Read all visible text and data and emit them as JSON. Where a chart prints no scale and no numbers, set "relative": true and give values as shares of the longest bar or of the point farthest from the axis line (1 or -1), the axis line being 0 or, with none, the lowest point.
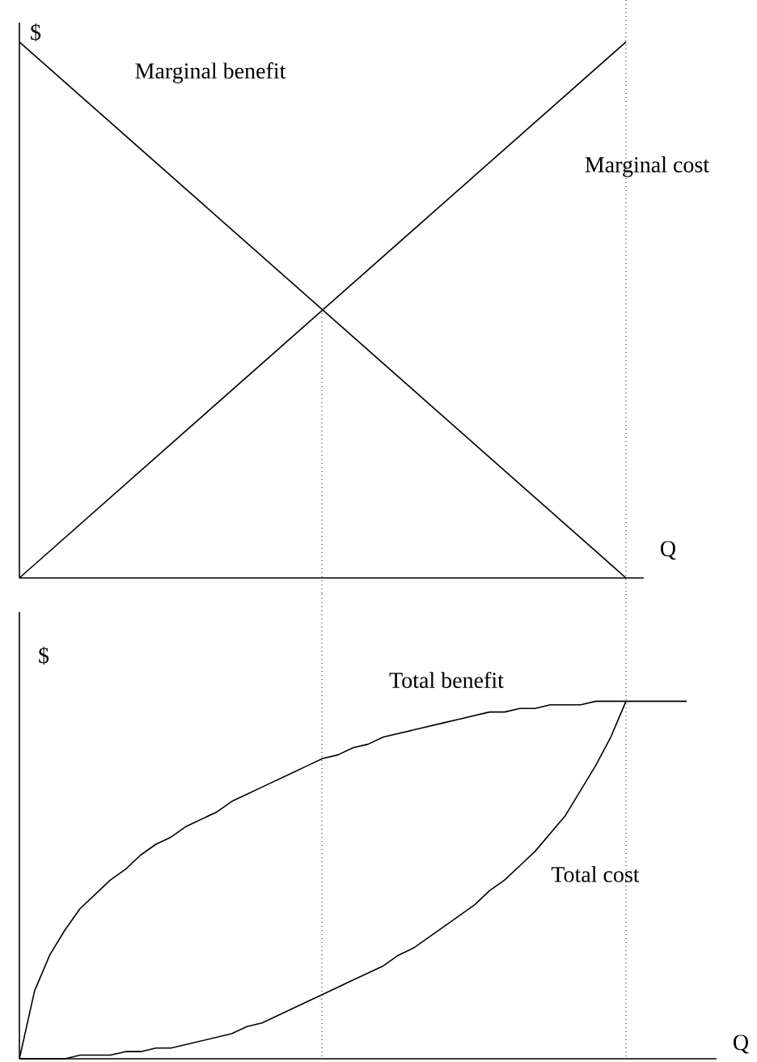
{
  "chart_data": [
    {
      "type": "line",
      "relative": true,
      "xlabel": "Q",
      "ylabel": "$",
      "categories": [
        null,
        null,
        null
      ],
      "series": [
        {
          "name": "Marginal benefit",
          "color": "#000000",
          "values": [
            1,
            0.5,
            0
          ]
        },
        {
          "name": "Marginal cost",
          "color": "#000000",
          "values": [
            0,
            0.5,
            1
          ]
        }
      ]
    },
    {
      "type": "line",
      "relative": true,
      "xlabel": "Q",
      "ylabel": "$",
      "categories": [
        null,
        null,
        null,
        null,
        null,
        null,
        null,
        null,
        null,
        null,
        null,
        null,
        null,
        null,
        null,
        null,
        null,
        null,
        null,
        null,
        null,
        null,
        null,
        null,
        null,
        null,
        null,
        null,
        null,
        null,
        null,
        null,
        null,
        null,
        null,
        null,
        null,
        null,
        null,
        null,
        null,
        null,
        null,
        null,
        null
      ],
      "series": [
        {
          "name": "Total benefit",
          "color": "#000000",
          "values": [
            0,
            0.19,
            0.29,
            0.36,
            0.42,
            0.46,
            0.5,
            0.53,
            0.57,
            0.6,
            0.62,
            0.65,
            0.67,
            0.69,
            0.72,
            0.74,
            0.76,
            0.78,
            0.8,
            0.82,
            0.84,
            0.85,
            0.87,
            0.88,
            0.9,
            0.91,
            0.92,
            0.93,
            0.94,
            0.95,
            0.96,
            0.97,
            0.97,
            0.98,
            0.98,
            0.99,
            0.99,
            0.99,
            1,
            1,
            1,
            1,
            1,
            1,
            1
          ]
        },
        {
          "name": "Total cost",
          "color": "#000000",
          "values": [
            0,
            0,
            0,
            0,
            0.01,
            0.01,
            0.01,
            0.02,
            0.02,
            0.03,
            0.03,
            0.04,
            0.05,
            0.06,
            0.07,
            0.09,
            0.1,
            0.12,
            0.14,
            0.16,
            0.18,
            0.2,
            0.22,
            0.24,
            0.26,
            0.29,
            0.31,
            0.34,
            0.37,
            0.4,
            0.43,
            0.47,
            0.5,
            0.54,
            0.58,
            0.63,
            0.68,
            0.75,
            0.82,
            0.9,
            1,
            null,
            null,
            null,
            null
          ]
        }
      ]
    }
  ]
}
